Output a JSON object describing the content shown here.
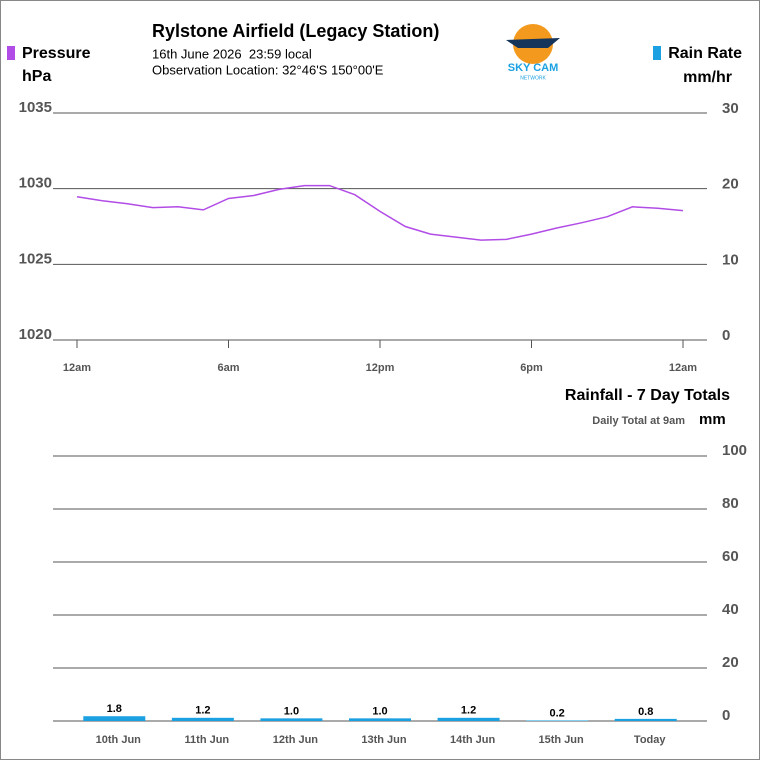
{
  "logo": {
    "text": "SKY CAM",
    "subtext": "NETWORK"
  },
  "chart_data": [
    {
      "type": "line",
      "title": "Rylstone Airfield (Legacy Station)",
      "subtitle": [
        "16th June 2026  23:59 local",
        "Observation Location: 32°46'S 150°00'E"
      ],
      "ylabel": "hPa",
      "y2label": "mm/hr",
      "x": [
        0,
        1,
        2,
        3,
        4,
        5,
        6,
        7,
        8,
        9,
        10,
        11,
        12,
        13,
        14,
        15,
        16,
        17,
        18,
        19,
        20,
        21,
        22,
        23,
        24
      ],
      "xlim": [
        0,
        24
      ],
      "xticks": [
        {
          "value": 0,
          "label": "12am"
        },
        {
          "value": 6,
          "label": "6am"
        },
        {
          "value": 12,
          "label": "12pm"
        },
        {
          "value": 18,
          "label": "6pm"
        },
        {
          "value": 24,
          "label": "12am"
        }
      ],
      "ylim": [
        1020,
        1035
      ],
      "yticks": [
        1020,
        1025,
        1030,
        1035
      ],
      "y2lim": [
        0,
        30
      ],
      "y2ticks": [
        0,
        10,
        20,
        30
      ],
      "grid": true,
      "series": [
        {
          "name": "Pressure",
          "color": "#b24ce6",
          "values": [
            1029.47,
            1029.2,
            1029.0,
            1028.75,
            1028.8,
            1028.6,
            1029.35,
            1029.55,
            1029.95,
            1030.2,
            1030.2,
            1029.6,
            1028.5,
            1027.5,
            1027.0,
            1026.8,
            1026.6,
            1026.65,
            1027.0,
            1027.4,
            1027.75,
            1028.15,
            1028.8,
            1028.7,
            1028.55
          ]
        },
        {
          "name": "Rain Rate",
          "color": "#1ba1e2",
          "axis": "y2",
          "values": [
            null,
            null,
            null,
            null,
            null,
            null,
            null,
            null,
            null,
            null,
            null,
            null,
            null,
            null,
            null,
            null,
            null,
            null,
            null,
            null,
            null,
            null,
            null,
            null,
            null
          ]
        }
      ]
    },
    {
      "type": "bar",
      "title": "Rainfall - 7 Day Totals",
      "subtitle": "Daily Total at 9am",
      "ylabel": "mm",
      "categories": [
        "10th Jun",
        "11th Jun",
        "12th Jun",
        "13th Jun",
        "14th Jun",
        "15th Jun",
        "Today"
      ],
      "values": [
        1.8,
        1.2,
        1.0,
        1.0,
        1.2,
        0.2,
        0.8
      ],
      "value_labels": [
        "1.8",
        "1.2",
        "1.0",
        "1.0",
        "1.2",
        "0.2",
        "0.8"
      ],
      "color": "#1ba1e2",
      "ylim": [
        0,
        100
      ],
      "yticks": [
        0,
        20,
        40,
        60,
        80,
        100
      ],
      "grid": true
    }
  ]
}
